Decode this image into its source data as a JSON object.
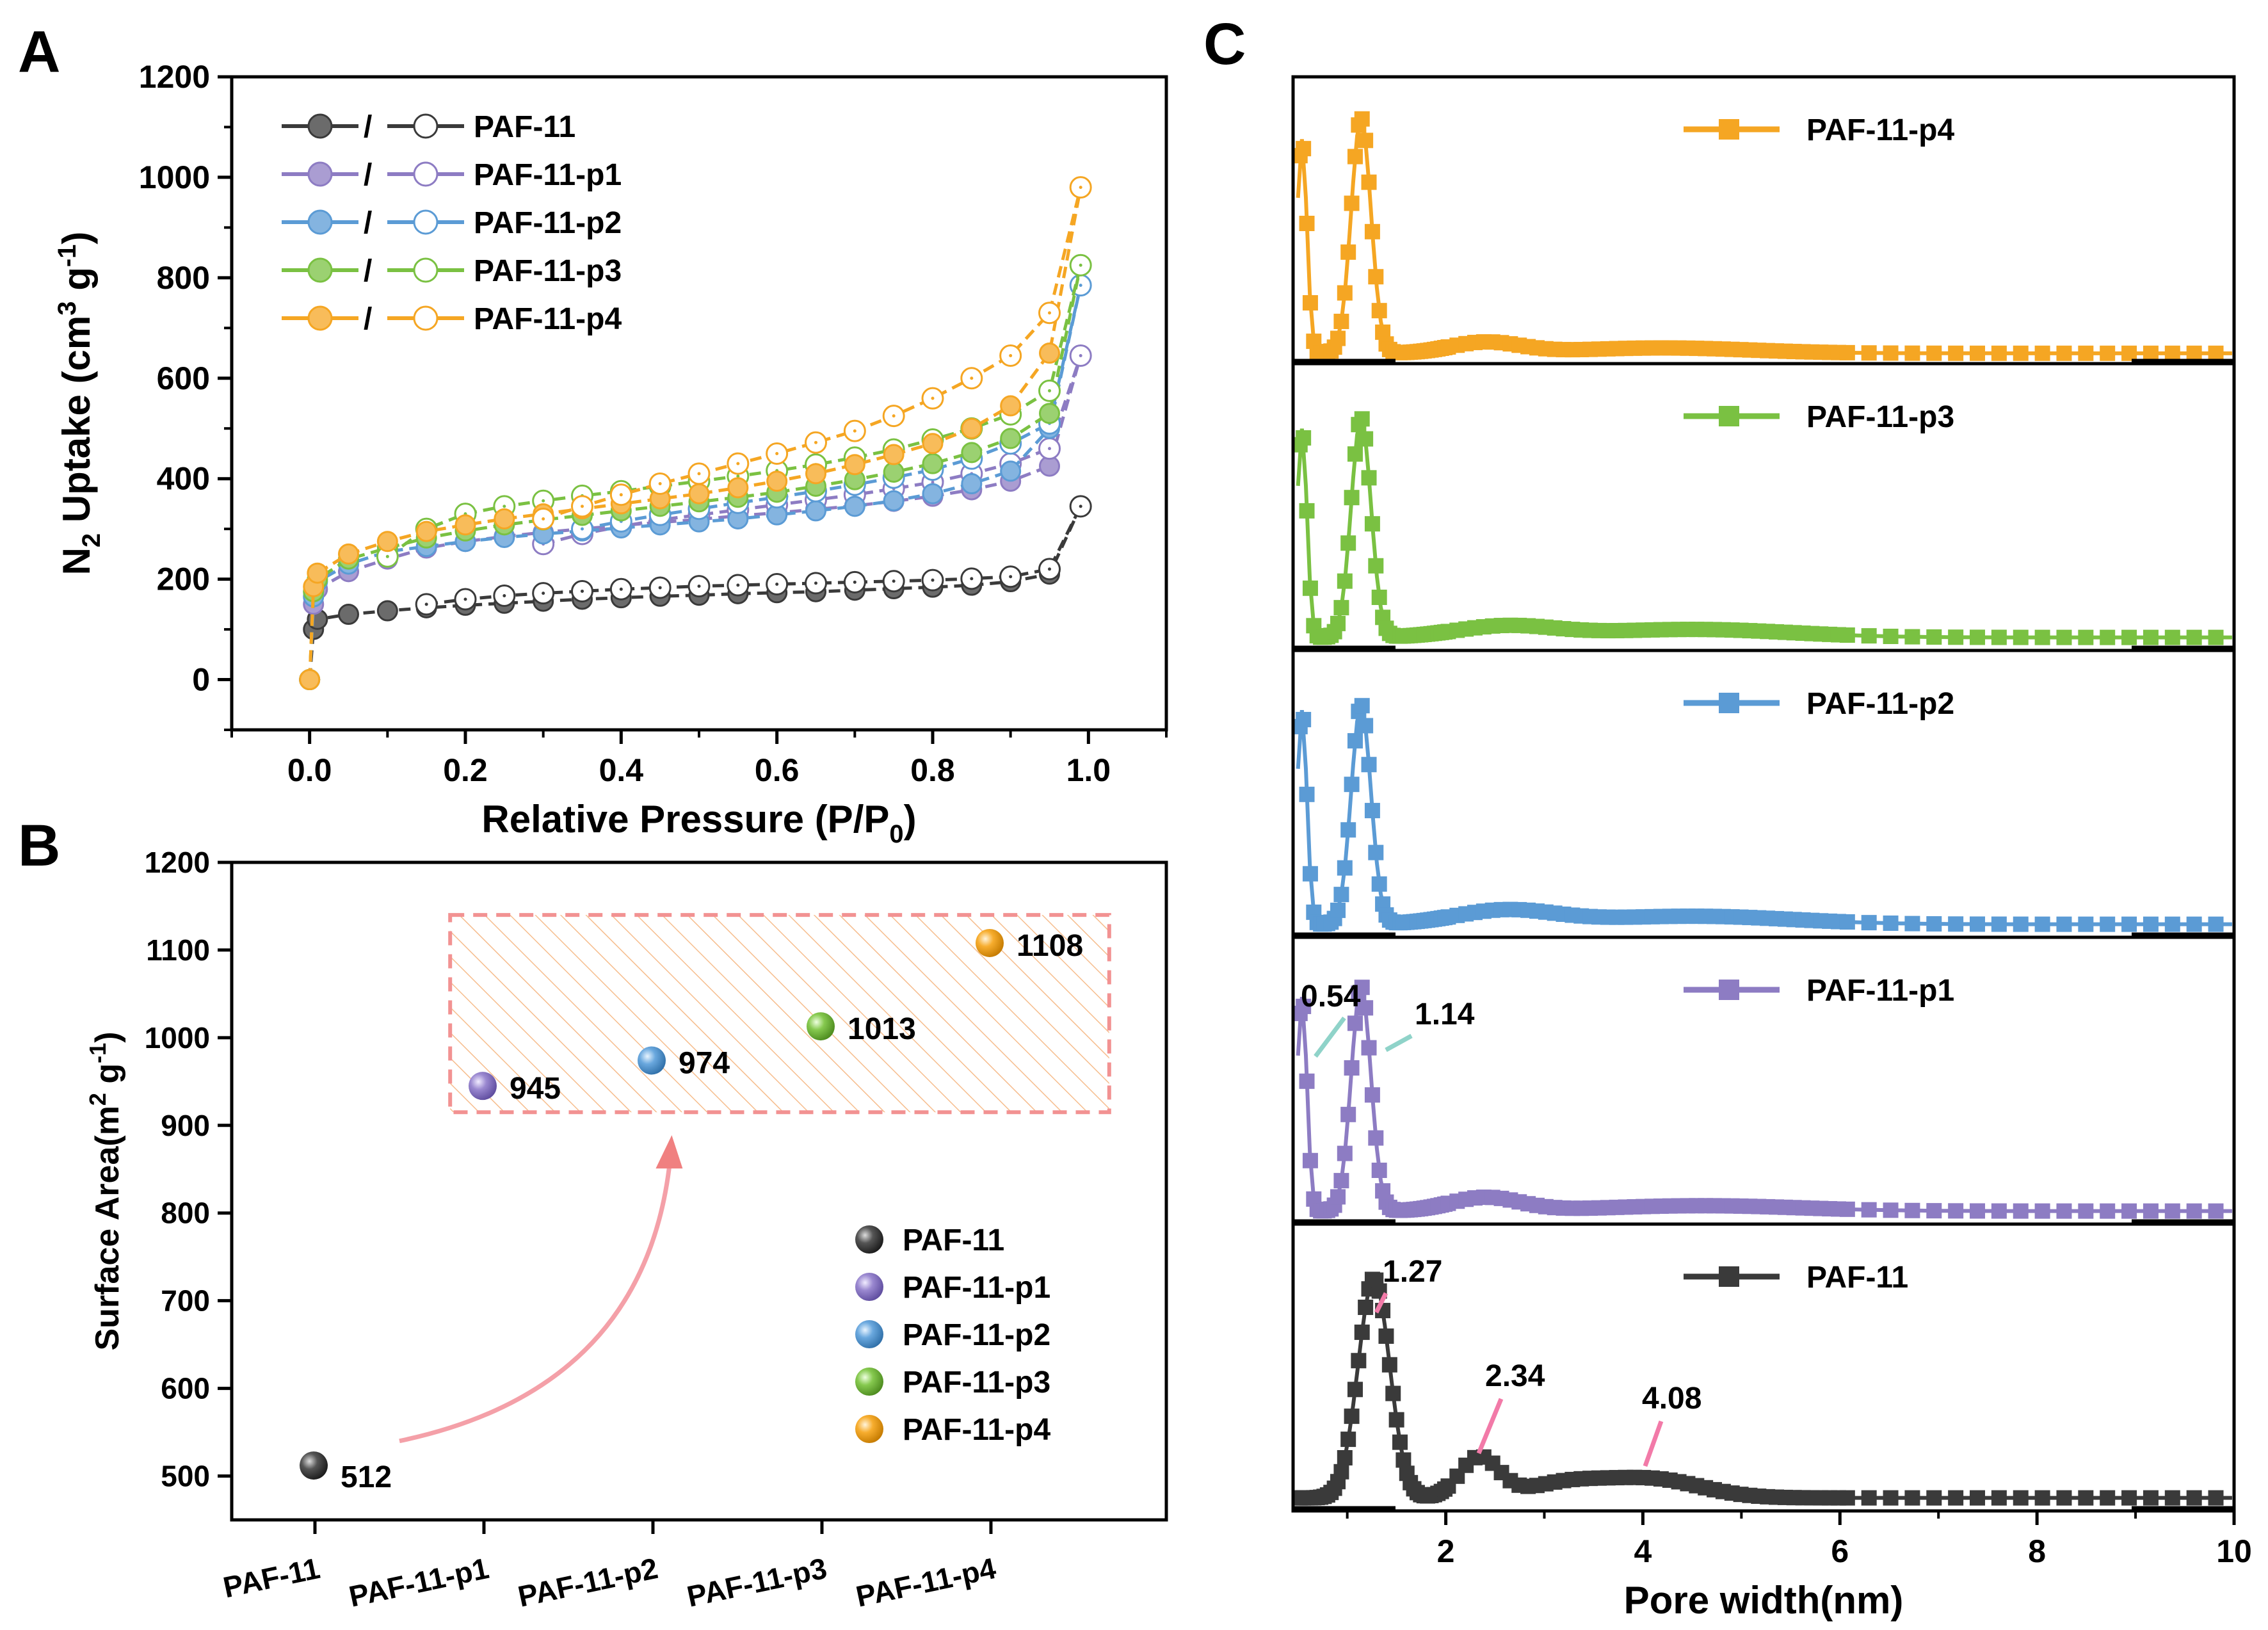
{
  "panels": [
    {
      "id": "A",
      "letter": "A",
      "chart_data": {
        "type": "line",
        "xlabel": "Relative Pressure (P/P0)",
        "xlabel_main": "Relative Pressure (P/P",
        "xlabel_sub": "0",
        "xlabel_end": ")",
        "ylabel": "N2 Uptake (cm3 g-1)",
        "ylabel_parts": [
          "N",
          "2",
          " Uptake (cm",
          "3",
          " g",
          "-1",
          ")"
        ],
        "xlim": [
          -0.1,
          1.1
        ],
        "ylim": [
          -100,
          1200
        ],
        "xticks": [
          0.0,
          0.2,
          0.4,
          0.6,
          0.8,
          1.0
        ],
        "xtick_labels": [
          "0.0",
          "0.2",
          "0.4",
          "0.6",
          "0.8",
          "1.0"
        ],
        "yticks": [
          0,
          200,
          400,
          600,
          800,
          1000,
          1200
        ],
        "ytick_labels": [
          "0",
          "200",
          "400",
          "600",
          "800",
          "1000",
          "1200"
        ],
        "legend_position": "top-left",
        "legend_separator": "/",
        "x": [
          0.0,
          0.005,
          0.01,
          0.05,
          0.1,
          0.15,
          0.2,
          0.25,
          0.3,
          0.35,
          0.4,
          0.45,
          0.5,
          0.55,
          0.6,
          0.65,
          0.7,
          0.75,
          0.8,
          0.85,
          0.9,
          0.95,
          0.99
        ],
        "series": [
          {
            "name": "PAF-11",
            "color": "#3a3a3a",
            "adsorption": [
              0,
              100,
              120,
              130,
              137,
              143,
              148,
              152,
              156,
              160,
              163,
              166,
              168,
              171,
              173,
              175,
              178,
              181,
              184,
              188,
              195,
              210,
              345
            ],
            "desorption": [
              150,
              160,
              167,
              172,
              176,
              180,
              183,
              186,
              188,
              190,
              192,
              194,
              196,
              198,
              201,
              205,
              220,
              345
            ]
          },
          {
            "name": "PAF-11-p1",
            "color": "#8d7cc3",
            "adsorption": [
              0,
              150,
              180,
              215,
              240,
              262,
              275,
              285,
              293,
              300,
              307,
              313,
              319,
              326,
              332,
              339,
              346,
              355,
              365,
              378,
              395,
              425,
              645
            ],
            "desorption": [
              270,
              290,
              305,
              318,
              328,
              338,
              348,
              358,
              368,
              380,
              393,
              410,
              430,
              460,
              645
            ]
          },
          {
            "name": "PAF-11-p2",
            "color": "#5b9bd5",
            "adsorption": [
              0,
              165,
              195,
              230,
              255,
              265,
              275,
              283,
              290,
              296,
              302,
              308,
              314,
              320,
              328,
              336,
              345,
              356,
              370,
              390,
              415,
              500,
              785
            ],
            "desorption": [
              300,
              315,
              328,
              340,
              352,
              363,
              375,
              388,
              402,
              418,
              440,
              470,
              510,
              785
            ]
          },
          {
            "name": "PAF-11-p3",
            "color": "#7ac142",
            "adsorption": [
              0,
              175,
              200,
              240,
              262,
              282,
              296,
              308,
              318,
              327,
              336,
              345,
              354,
              363,
              373,
              385,
              398,
              413,
              430,
              452,
              480,
              530,
              825
            ],
            "desorption": [
              245,
              300,
              330,
              345,
              356,
              366,
              375,
              385,
              395,
              405,
              416,
              428,
              442,
              458,
              478,
              500,
              528,
              575,
              825
            ]
          },
          {
            "name": "PAF-11-p4",
            "color": "#f5a623",
            "adsorption": [
              0,
              185,
              212,
              250,
              275,
              295,
              308,
              320,
              330,
              340,
              350,
              360,
              370,
              382,
              395,
              410,
              428,
              448,
              470,
              500,
              545,
              650,
              980
            ],
            "desorption": [
              320,
              345,
              368,
              390,
              410,
              430,
              450,
              472,
              495,
              525,
              560,
              600,
              645,
              730,
              980
            ]
          }
        ]
      }
    },
    {
      "id": "B",
      "letter": "B",
      "chart_data": {
        "type": "scatter",
        "ylabel": "Surface Area(m2 g-1)",
        "ylabel_parts": [
          "Surface Area(m",
          "2",
          " g",
          "-1",
          ")"
        ],
        "categories": [
          "PAF-11",
          "PAF-11-p1",
          "PAF-11-p2",
          "PAF-11-p3",
          "PAF-11-p4"
        ],
        "values": [
          512,
          945,
          974,
          1013,
          1108
        ],
        "value_labels": [
          "512",
          "945",
          "974",
          "1013",
          "1108"
        ],
        "colors": [
          "#3a3a3a",
          "#8d7cc3",
          "#5b9bd5",
          "#7ac142",
          "#f5a623"
        ],
        "ylim": [
          450,
          1200
        ],
        "yticks": [
          500,
          600,
          700,
          800,
          900,
          1000,
          1100,
          1200
        ],
        "ytick_labels": [
          "500",
          "600",
          "700",
          "800",
          "900",
          "1000",
          "1100",
          "1200"
        ],
        "legend_position": "bottom-right",
        "highlight_box": {
          "y_range": [
            915,
            1140
          ],
          "x_range_categories": [
            0.8,
            4.7
          ],
          "color": "#f08080",
          "fill": "#f5a05a"
        },
        "arrow": {
          "from_category": 0.5,
          "from_value": 540,
          "to_category": 2.1,
          "to_value": 880,
          "color": "#f4a0a8"
        }
      }
    },
    {
      "id": "C",
      "letter": "C",
      "chart_data": {
        "type": "line",
        "xlabel": "Pore width(nm)",
        "xlim": [
          0.45,
          10.0
        ],
        "xticks": [
          2,
          4,
          6,
          8,
          10
        ],
        "xtick_labels": [
          "2",
          "4",
          "6",
          "8",
          "10"
        ],
        "legend_position": "top-center",
        "panel_order_top_to_bottom": [
          "PAF-11-p4",
          "PAF-11-p3",
          "PAF-11-p2",
          "PAF-11-p1",
          "PAF-11"
        ],
        "series": [
          {
            "name": "PAF-11-p4",
            "color": "#f5a623",
            "peaks": [
              {
                "x": 0.54,
                "h": 0.8,
                "w": 0.05
              },
              {
                "x": 1.14,
                "h": 0.88,
                "w": 0.1
              },
              {
                "x": 2.4,
                "h": 0.04,
                "w": 0.35
              },
              {
                "x": 4.2,
                "h": 0.02,
                "w": 0.9
              }
            ],
            "base": 0.01
          },
          {
            "name": "PAF-11-p3",
            "color": "#7ac142",
            "peaks": [
              {
                "x": 0.54,
                "h": 0.78,
                "w": 0.05
              },
              {
                "x": 1.14,
                "h": 0.82,
                "w": 0.1
              },
              {
                "x": 2.6,
                "h": 0.04,
                "w": 0.5
              },
              {
                "x": 4.5,
                "h": 0.03,
                "w": 1.0
              }
            ],
            "base": 0.02
          },
          {
            "name": "PAF-11-p2",
            "color": "#5b9bd5",
            "peaks": [
              {
                "x": 0.54,
                "h": 0.8,
                "w": 0.05
              },
              {
                "x": 1.14,
                "h": 0.82,
                "w": 0.1
              },
              {
                "x": 2.6,
                "h": 0.05,
                "w": 0.5
              },
              {
                "x": 4.5,
                "h": 0.03,
                "w": 1.0
              }
            ],
            "base": 0.02
          },
          {
            "name": "PAF-11-p1",
            "color": "#8d7cc3",
            "peaks": [
              {
                "x": 0.54,
                "h": 0.8,
                "w": 0.05
              },
              {
                "x": 1.14,
                "h": 0.84,
                "w": 0.1
              },
              {
                "x": 2.4,
                "h": 0.05,
                "w": 0.35
              },
              {
                "x": 4.6,
                "h": 0.02,
                "w": 1.0
              }
            ],
            "base": 0.02
          },
          {
            "name": "PAF-11",
            "color": "#3a3a3a",
            "peaks": [
              {
                "x": 1.27,
                "h": 0.82,
                "w": 0.16
              },
              {
                "x": 2.34,
                "h": 0.15,
                "w": 0.2
              },
              {
                "x": 4.08,
                "h": 0.07,
                "w": 0.5
              },
              {
                "x": 3.2,
                "h": 0.05,
                "w": 0.4
              }
            ],
            "base": 0.02
          }
        ],
        "annotations": [
          {
            "panel": "PAF-11-p1",
            "text": "0.54",
            "line_color": "#8fd3c9"
          },
          {
            "panel": "PAF-11-p1",
            "text": "1.14",
            "line_color": "#8fd3c9"
          },
          {
            "panel": "PAF-11",
            "text": "1.27",
            "line_color": "#f27aa8"
          },
          {
            "panel": "PAF-11",
            "text": "2.34",
            "line_color": "#f27aa8"
          },
          {
            "panel": "PAF-11",
            "text": "4.08",
            "line_color": "#f27aa8"
          }
        ]
      }
    }
  ]
}
